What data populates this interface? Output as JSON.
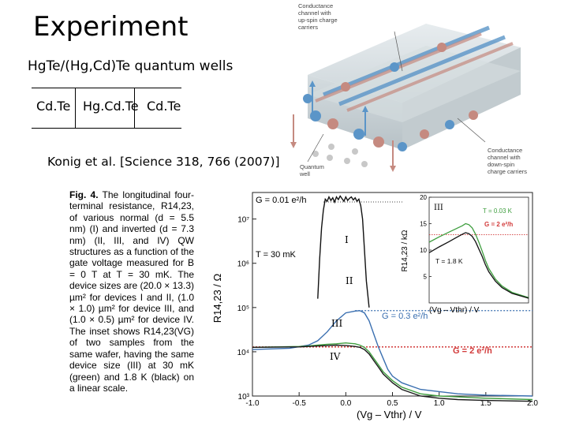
{
  "slide": {
    "title": "Experiment",
    "subtitle": "HgTe/(Hg,Cd)Te quantum wells",
    "layers": [
      "Cd.Te",
      "Hg.Cd.Te",
      "Cd.Te"
    ],
    "reference": "Konig et al.  [Science 318, 766 (2007)]"
  },
  "schematic": {
    "label_top": [
      "Conductance",
      "channel with",
      "up-spin charge",
      "carriers"
    ],
    "label_bottom": [
      "Conductance",
      "channel with",
      "down-spin",
      "charge carriers"
    ],
    "label_well": [
      "Quantum",
      "well"
    ],
    "colors": {
      "up_spin": "#5b95c8",
      "down_spin": "#c58a80",
      "slab": "#c9d3d8"
    }
  },
  "figure": {
    "caption_label": "Fig. 4.",
    "caption_text": "The longitudinal four-terminal resistance, R14,23, of various normal (d = 5.5 nm) (I) and inverted (d = 7.3 nm) (II, III, and IV) QW structures as a function of the gate voltage measured for B = 0 T at T = 30 mK. The device sizes are (20.0 × 13.3) µm² for devices I and II, (1.0 × 1.0) µm² for device III, and (1.0 × 0.5) µm² for device IV. The inset shows R14,23(VG) of two samples from the same wafer, having the same device size (III) at 30 mK (green) and 1.8 K (black) on a linear scale."
  },
  "chart_data": [
    {
      "type": "line",
      "title": "",
      "xlabel": "(Vg – Vthr) / V",
      "ylabel": "R14,23 / Ω",
      "xlim": [
        -1.0,
        2.0
      ],
      "ylim_log10": [
        3,
        7.6
      ],
      "log_y": true,
      "xticks": [
        "-1.0",
        "-0.5",
        "0.0",
        "0.5",
        "1.0",
        "1.5",
        "2.0"
      ],
      "yticks": [
        "10³",
        "10⁴",
        "10⁵",
        "10⁶",
        "10⁷"
      ],
      "annotations": {
        "g0": "G = 0.01 e²/h",
        "temp": "T = 30 mK",
        "g03": "G = 0.3 e²/h",
        "g2": "G = 2 e²/h",
        "roman": [
          "I",
          "II",
          "III",
          "IV"
        ]
      },
      "reference_lines_log10": {
        "g03": 4.93,
        "g2": 4.11
      },
      "series": [
        {
          "id": "I",
          "color": "#111111",
          "x": [
            -0.3,
            -0.28,
            -0.26,
            -0.24,
            -0.22,
            -0.2,
            -0.18,
            -0.16,
            -0.14,
            -0.12,
            -0.1,
            -0.08,
            -0.06,
            -0.04,
            -0.02,
            0.0,
            0.02,
            0.04,
            0.06,
            0.08,
            0.1,
            0.12,
            0.14,
            0.16,
            0.18,
            0.2,
            0.22,
            0.25
          ],
          "log10_y": [
            5.2,
            6.1,
            6.8,
            7.2,
            7.45,
            7.4,
            7.5,
            7.42,
            7.48,
            7.38,
            7.5,
            7.44,
            7.52,
            7.46,
            7.4,
            7.5,
            7.42,
            7.47,
            7.5,
            7.43,
            7.48,
            7.4,
            7.45,
            7.3,
            7.0,
            6.3,
            5.6,
            5.0
          ]
        },
        {
          "id": "II",
          "color": "#3a6fb0",
          "x": [
            -1.0,
            -0.6,
            -0.4,
            -0.3,
            -0.2,
            -0.1,
            0.0,
            0.1,
            0.15,
            0.2,
            0.25,
            0.3,
            0.35,
            0.4,
            0.45,
            0.5,
            0.6,
            0.8,
            1.0,
            1.2,
            1.5,
            2.0
          ],
          "log10_y": [
            4.05,
            4.08,
            4.15,
            4.25,
            4.45,
            4.7,
            4.88,
            4.92,
            4.93,
            4.88,
            4.7,
            4.4,
            4.1,
            3.85,
            3.6,
            3.45,
            3.3,
            3.15,
            3.1,
            3.05,
            3.02,
            3.0
          ]
        },
        {
          "id": "III",
          "color": "#3f9e3f",
          "x": [
            -1.0,
            -0.5,
            -0.4,
            -0.3,
            -0.2,
            -0.1,
            0.0,
            0.05,
            0.1,
            0.15,
            0.2,
            0.25,
            0.3,
            0.35,
            0.4,
            0.5,
            0.6,
            0.8,
            1.0,
            1.2,
            1.5,
            2.0
          ],
          "log10_y": [
            4.1,
            4.12,
            4.13,
            4.15,
            4.17,
            4.18,
            4.2,
            4.19,
            4.18,
            4.15,
            4.1,
            4.0,
            3.85,
            3.7,
            3.55,
            3.35,
            3.2,
            3.05,
            3.0,
            2.98,
            2.95,
            2.92
          ]
        },
        {
          "id": "IV",
          "color": "#1a1a1a",
          "x": [
            -1.0,
            -0.5,
            -0.4,
            -0.3,
            -0.2,
            -0.1,
            0.0,
            0.05,
            0.1,
            0.15,
            0.2,
            0.25,
            0.3,
            0.35,
            0.4,
            0.5,
            0.6,
            0.8,
            1.0,
            1.2,
            1.5,
            2.0
          ],
          "log10_y": [
            4.1,
            4.11,
            4.12,
            4.13,
            4.14,
            4.15,
            4.14,
            4.13,
            4.12,
            4.1,
            4.05,
            3.95,
            3.8,
            3.65,
            3.5,
            3.3,
            3.15,
            3.0,
            2.95,
            2.92,
            2.9,
            2.88
          ]
        }
      ]
    },
    {
      "type": "line",
      "title": "",
      "xlabel": "(Vg – Vthr) / V",
      "ylabel": "R14,23 / kΩ",
      "xlim": [
        -1.0,
        2.0
      ],
      "ylim": [
        0,
        20
      ],
      "yticks": [
        "5",
        "10",
        "15",
        "20"
      ],
      "annotations": {
        "roman": "III",
        "t1": "T = 0.03 K",
        "t2": "T = 1.8 K",
        "g2": "G = 2 e²/h"
      },
      "reference_lines": {
        "g2": 12.9
      },
      "series": [
        {
          "id": "green",
          "color": "#3f9e3f",
          "x": [
            -1.0,
            -0.7,
            -0.4,
            -0.2,
            0.0,
            0.1,
            0.2,
            0.3,
            0.4,
            0.5,
            0.6,
            0.7,
            0.8,
            1.0,
            1.2,
            1.5,
            2.0
          ],
          "y": [
            11.5,
            12.5,
            13.4,
            14.0,
            14.6,
            15.0,
            14.8,
            14.2,
            13.0,
            11.5,
            9.8,
            8.0,
            6.5,
            4.5,
            3.2,
            2.0,
            1.0
          ]
        },
        {
          "id": "black",
          "color": "#111111",
          "x": [
            -1.0,
            -0.7,
            -0.4,
            -0.2,
            0.0,
            0.1,
            0.2,
            0.3,
            0.4,
            0.5,
            0.6,
            0.7,
            0.8,
            1.0,
            1.2,
            1.5,
            2.0
          ],
          "y": [
            9.5,
            10.6,
            11.6,
            12.3,
            13.0,
            13.3,
            13.1,
            12.6,
            11.6,
            10.2,
            8.8,
            7.2,
            5.9,
            4.1,
            2.9,
            1.8,
            0.9
          ]
        }
      ]
    }
  ]
}
